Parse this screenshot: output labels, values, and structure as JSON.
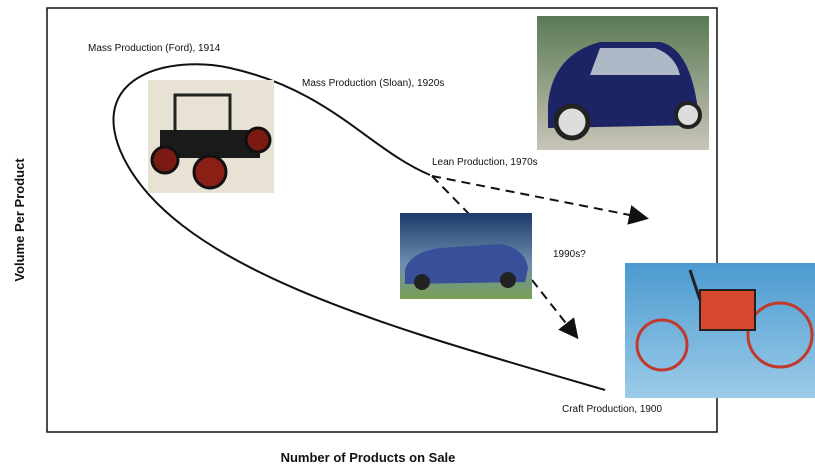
{
  "axes": {
    "y_label": "Volume Per Product",
    "x_label": "Number of Products on Sale"
  },
  "labels": {
    "ford": "Mass Production (Ford), 1914",
    "sloan": "Mass Production (Sloan), 1920s",
    "lean": "Lean Production, 1970s",
    "future": "1990s?",
    "craft": "Craft Production, 1900"
  }
}
